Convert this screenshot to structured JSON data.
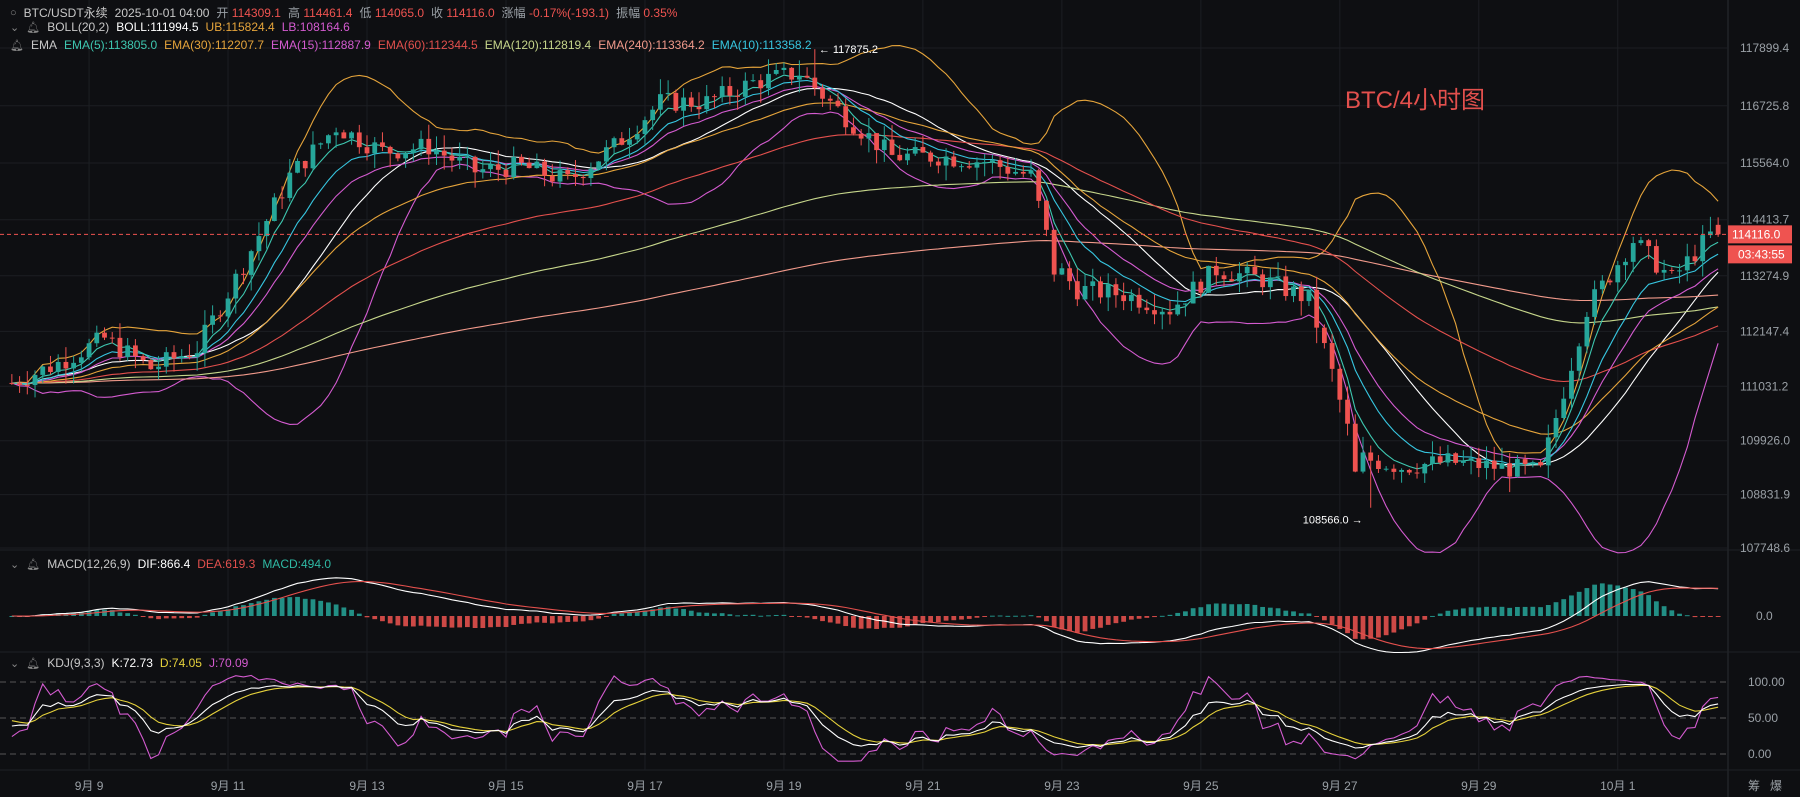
{
  "header": {
    "symbol": "BTC/USDT永续",
    "datetime": "2025-10-01 04:00",
    "open_label": "开",
    "open": "114309.1",
    "high_label": "高",
    "high": "114461.4",
    "low_label": "低",
    "low": "114065.0",
    "close_label": "收",
    "close": "114116.0",
    "change_label": "涨幅",
    "change": "-0.17%(-193.1)",
    "amp_label": "振幅",
    "amp": "0.35%"
  },
  "boll": {
    "label": "BOLL(20,2)",
    "mid": "BOLL:111994.5",
    "ub": "UB:115824.4",
    "lb": "LB:108164.6"
  },
  "ema": {
    "label": "EMA",
    "e5": "EMA(5):113805.0",
    "e30": "EMA(30):112207.7",
    "e15": "EMA(15):112887.9",
    "e60": "EMA(60):112344.5",
    "e120": "EMA(120):112819.4",
    "e240": "EMA(240):113364.2",
    "e10": "EMA(10):113358.2"
  },
  "macd": {
    "label": "MACD(12,26,9)",
    "dif": "DIF:866.4",
    "dea": "DEA:619.3",
    "macd": "MACD:494.0",
    "zero": "0.0"
  },
  "kdj": {
    "label": "KDJ(9,3,3)",
    "k": "K:72.73",
    "d": "D:74.05",
    "j": "J:70.09",
    "ticks": [
      "100.00",
      "50.00",
      "0.00"
    ]
  },
  "watermark": "BTC/4小时图",
  "annotations": {
    "high": "← 117875.2",
    "low": "108566.0 →"
  },
  "price_label": {
    "value": "114116.0",
    "countdown": "03:43:55"
  },
  "corner_labels": [
    "筹",
    "爆"
  ],
  "colors": {
    "up": "#ef5350",
    "down": "#26a69a",
    "bg": "#0e0f12",
    "grid": "#1c1e23"
  },
  "chart_data": {
    "type": "candlestick",
    "interval": "4h",
    "y_ticks": [
      117899.4,
      116725.8,
      115564.0,
      114413.7,
      113274.9,
      112147.4,
      111031.2,
      109926.0,
      108831.9,
      107748.6
    ],
    "x_labels": [
      "9月 9",
      "9月 11",
      "9月 13",
      "9月 15",
      "9月 17",
      "9月 19",
      "9月 21",
      "9月 23",
      "9月 25",
      "9月 27",
      "9月 29",
      "10月 1"
    ],
    "high_mark": 117875.2,
    "low_mark": 108566.0,
    "last_price": 114116.0,
    "key_points": [
      [
        0,
        111100
      ],
      [
        6,
        111500
      ],
      [
        12,
        112000
      ],
      [
        18,
        111400
      ],
      [
        24,
        111800
      ],
      [
        30,
        113500
      ],
      [
        36,
        115300
      ],
      [
        42,
        116300
      ],
      [
        48,
        115800
      ],
      [
        54,
        115900
      ],
      [
        60,
        115400
      ],
      [
        66,
        115500
      ],
      [
        72,
        115200
      ],
      [
        78,
        115900
      ],
      [
        84,
        116800
      ],
      [
        90,
        116800
      ],
      [
        96,
        117200
      ],
      [
        102,
        117400
      ],
      [
        108,
        116500
      ],
      [
        114,
        115700
      ],
      [
        120,
        115700
      ],
      [
        126,
        115600
      ],
      [
        132,
        115300
      ],
      [
        135,
        113500
      ],
      [
        138,
        113000
      ],
      [
        144,
        112900
      ],
      [
        150,
        112600
      ],
      [
        156,
        113400
      ],
      [
        162,
        113200
      ],
      [
        168,
        112800
      ],
      [
        171,
        111300
      ],
      [
        174,
        109600
      ],
      [
        180,
        109400
      ],
      [
        186,
        109500
      ],
      [
        192,
        109400
      ],
      [
        198,
        109300
      ],
      [
        204,
        112600
      ],
      [
        210,
        114000
      ],
      [
        215,
        113200
      ],
      [
        220,
        114100
      ]
    ]
  }
}
